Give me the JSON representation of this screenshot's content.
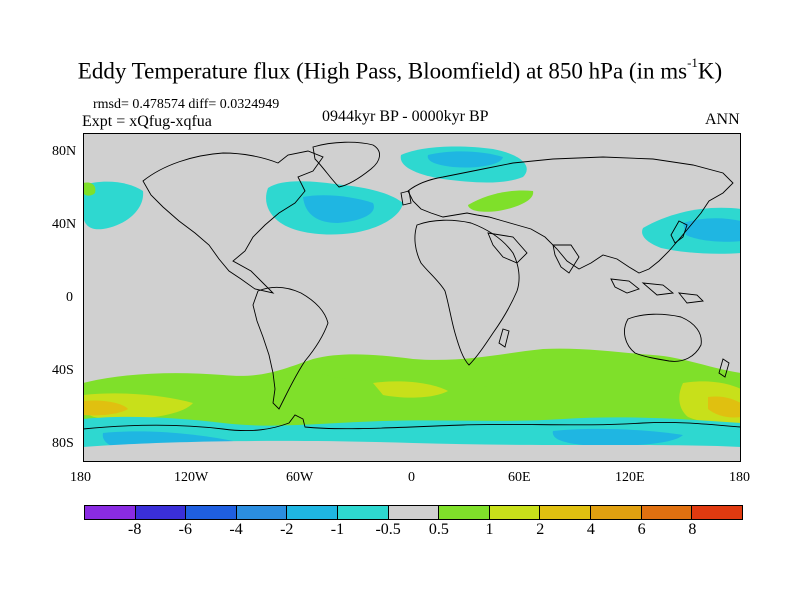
{
  "title": {
    "main": "Eddy Temperature flux (High Pass, Bloomfield) at 850 hPa (in ms",
    "sup": "-1",
    "tail": "K)"
  },
  "stats": "rmsd= 0.478574 diff= 0.0324949",
  "experiment": "Expt = xQfug-xqfua",
  "period": "0944kyr BP - 0000kyr BP",
  "season": "ANN",
  "axes": {
    "lat_labels": [
      "80N",
      "40N",
      "0",
      "40S",
      "80S"
    ],
    "lon_labels": [
      "180",
      "120W",
      "60W",
      "0",
      "60E",
      "120E",
      "180"
    ]
  },
  "colorbar": {
    "labels": [
      "-8",
      "-6",
      "-4",
      "-2",
      "-1",
      "-0.5",
      "0.5",
      "1",
      "2",
      "4",
      "6",
      "8"
    ],
    "colors": [
      "#8a2be2",
      "#3a2fd8",
      "#1f5fe0",
      "#2b8ee0",
      "#1fb6e2",
      "#2ed8d0",
      "#d0d0d0",
      "#7fe02a",
      "#c8e01a",
      "#e0c010",
      "#e0a010",
      "#e07010",
      "#e03a10"
    ]
  },
  "colors": {
    "ocean_background": "#d0d0d0",
    "neg_small": "#2ed8d0",
    "neg_mid": "#1fb6e2",
    "pos_small": "#7fe02a",
    "pos_mid": "#c8e01a",
    "pos_high": "#e0c010",
    "pos_higher": "#e0a010"
  }
}
